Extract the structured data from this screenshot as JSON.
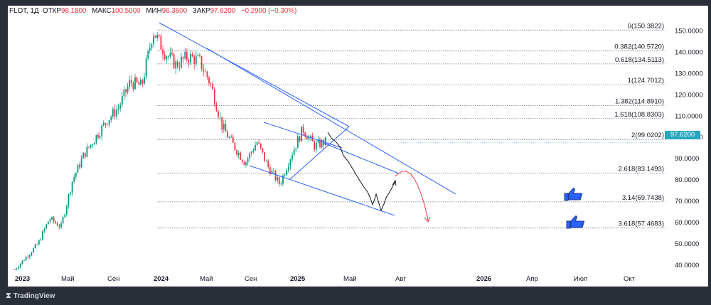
{
  "header": {
    "symbol": "FLOT, 1Д",
    "open_label": "ОТКР",
    "open_value": "98.1800",
    "high_label": "МАКС",
    "high_value": "100.5000",
    "low_label": "МИН",
    "low_value": "96.3600",
    "close_label": "ЗАКР",
    "close_value": "97.6200",
    "change_value": "−0.2900 (−0.30%)"
  },
  "price_badge": "97.6200",
  "footer": {
    "brand": "TradingView"
  },
  "colors": {
    "candle_up": "#089981",
    "candle_down": "#f23645",
    "channel": "#2962ff",
    "fib_line": "#787b86",
    "projection_black": "#131722",
    "projection_red": "#f23645",
    "badge": "#26a7bd"
  },
  "icons": [
    "thumbs-up-icon",
    "thumbs-up-icon"
  ],
  "chart_data": {
    "type": "candlestick",
    "symbol": "FLOT",
    "timeframe": "1Д",
    "x_tick_labels": [
      "2023",
      "Май",
      "Сен",
      "2024",
      "Май",
      "Сен",
      "2025",
      "Май",
      "Авг",
      "2026",
      "Апр",
      "Июл",
      "Окт"
    ],
    "y_ticks": [
      40,
      50,
      60,
      70,
      80,
      90,
      100,
      110,
      120,
      130,
      140,
      150
    ],
    "y_tick_labels": [
      "40.0000",
      "50.0000",
      "60.0000",
      "70.0000",
      "80.0000",
      "90.0000",
      "100.0000",
      "110.0000",
      "120.0000",
      "130.0000",
      "140.0000",
      "150.0000"
    ],
    "ylim": [
      35,
      160
    ],
    "fib_levels": [
      {
        "label": "0(150.3822)",
        "value": 150.3822
      },
      {
        "label": "0.382(140.5720)",
        "value": 140.572
      },
      {
        "label": "0.618(134.5113)",
        "value": 134.5113
      },
      {
        "label": "1(124.7012)",
        "value": 124.7012
      },
      {
        "label": "1.382(114.8910)",
        "value": 114.891
      },
      {
        "label": "1.618(108.8303)",
        "value": 108.8303
      },
      {
        "label": "2(99.0202)",
        "value": 99.0202
      },
      {
        "label": "2.618(83.1493)",
        "value": 83.1493
      },
      {
        "label": "3.14(69.7438)",
        "value": 69.7438
      },
      {
        "label": "3.618(57.4683)",
        "value": 57.4683
      }
    ],
    "approx_price_path": [
      [
        "2023-01",
        38
      ],
      [
        "2023-02",
        44
      ],
      [
        "2023-03",
        50
      ],
      [
        "2023-04",
        62
      ],
      [
        "2023-05",
        58
      ],
      [
        "2023-06",
        80
      ],
      [
        "2023-07",
        92
      ],
      [
        "2023-08",
        100
      ],
      [
        "2023-09",
        108
      ],
      [
        "2023-10",
        114
      ],
      [
        "2023-11",
        126
      ],
      [
        "2023-12",
        124
      ],
      [
        "2024-01",
        150
      ],
      [
        "2024-02",
        140
      ],
      [
        "2024-03",
        134
      ],
      [
        "2024-04",
        138
      ],
      [
        "2024-05",
        136
      ],
      [
        "2024-06",
        125
      ],
      [
        "2024-07",
        105
      ],
      [
        "2024-08",
        96
      ],
      [
        "2024-09",
        88
      ],
      [
        "2024-10",
        98
      ],
      [
        "2024-11",
        86
      ],
      [
        "2024-12",
        78
      ],
      [
        "2025-01",
        92
      ],
      [
        "2025-02",
        104
      ],
      [
        "2025-03",
        96
      ],
      [
        "2025-04",
        98
      ]
    ],
    "projection_black": [
      [
        "2025-03",
        97
      ],
      [
        "2025-04",
        94
      ],
      [
        "2025-05",
        88
      ],
      [
        "2025-06",
        80
      ],
      [
        "2025-07",
        71
      ],
      [
        "2025-08",
        64
      ],
      [
        "2025-09",
        70
      ],
      [
        "2025-10",
        78
      ]
    ],
    "projection_red": [
      [
        "2025-10",
        80
      ],
      [
        "2025-11",
        72
      ],
      [
        "2025-12",
        58
      ]
    ],
    "last_price": 97.62
  }
}
